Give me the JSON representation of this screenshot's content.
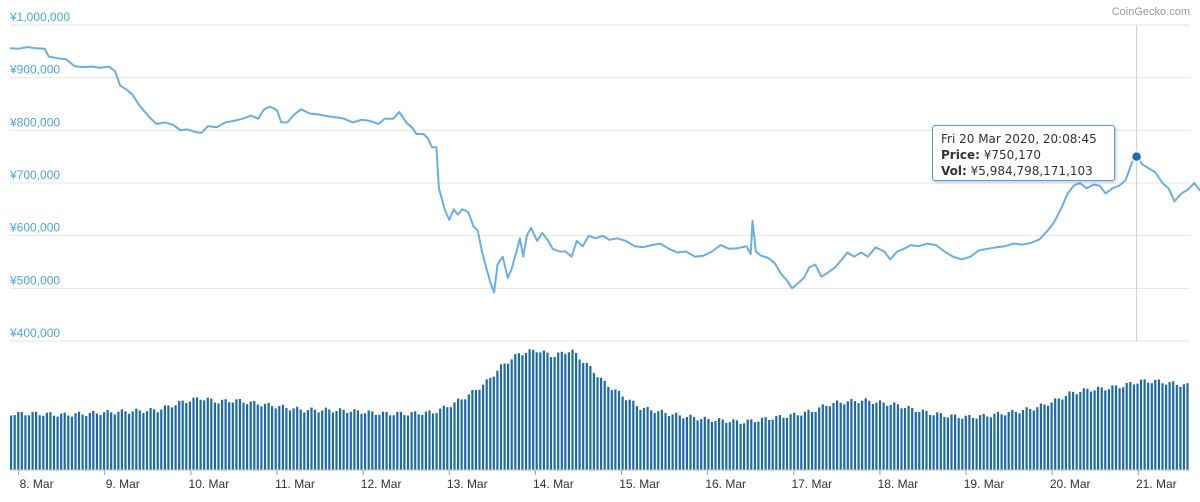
{
  "credit": "CoinGecko.com",
  "tooltip": {
    "date": "Fri 20 Mar 2020, 20:08:45",
    "price_label": "Price:",
    "price_value": "¥750,170",
    "vol_label": "Vol:",
    "vol_value": "¥5,984,798,171,103"
  },
  "colors": {
    "line": "#6aaee6",
    "bars": "#1c6aa6",
    "axis_text_y": "#4aa8de",
    "grid": "#e6e6e6",
    "crosshair": "#cccccc",
    "marker": "#1f6fb2"
  },
  "chart_data": {
    "type": "line",
    "y_ticks": [
      "¥1,000,000",
      "¥900,000",
      "¥800,000",
      "¥700,000",
      "¥600,000",
      "¥500,000",
      "¥400,000"
    ],
    "y_tick_values": [
      1000000,
      900000,
      800000,
      700000,
      600000,
      500000,
      400000
    ],
    "ylim": [
      400000,
      1000000
    ],
    "x_ticks": [
      "8. Mar",
      "9. Mar",
      "10. Mar",
      "11. Mar",
      "12. Mar",
      "13. Mar",
      "14. Mar",
      "15. Mar",
      "16. Mar",
      "17. Mar",
      "18. Mar",
      "19. Mar",
      "20. Mar",
      "21. Mar"
    ],
    "xlim_days": [
      7.9,
      21.6
    ],
    "price_series": {
      "name": "Price",
      "points": [
        [
          7.9,
          956000
        ],
        [
          8.0,
          955000
        ],
        [
          8.1,
          958000
        ],
        [
          8.2,
          956000
        ],
        [
          8.3,
          955000
        ],
        [
          8.35,
          940000
        ],
        [
          8.45,
          937000
        ],
        [
          8.55,
          935000
        ],
        [
          8.65,
          922000
        ],
        [
          8.75,
          920000
        ],
        [
          8.85,
          921000
        ],
        [
          8.95,
          919000
        ],
        [
          9.05,
          921000
        ],
        [
          9.12,
          912000
        ],
        [
          9.18,
          885000
        ],
        [
          9.25,
          878000
        ],
        [
          9.32,
          868000
        ],
        [
          9.4,
          848000
        ],
        [
          9.45,
          838000
        ],
        [
          9.52,
          825000
        ],
        [
          9.6,
          812000
        ],
        [
          9.7,
          815000
        ],
        [
          9.8,
          810000
        ],
        [
          9.88,
          800000
        ],
        [
          9.95,
          802000
        ],
        [
          10.05,
          797000
        ],
        [
          10.12,
          795000
        ],
        [
          10.2,
          808000
        ],
        [
          10.3,
          806000
        ],
        [
          10.4,
          815000
        ],
        [
          10.5,
          818000
        ],
        [
          10.6,
          822000
        ],
        [
          10.7,
          828000
        ],
        [
          10.78,
          822000
        ],
        [
          10.85,
          840000
        ],
        [
          10.92,
          845000
        ],
        [
          11.0,
          838000
        ],
        [
          11.05,
          815000
        ],
        [
          11.12,
          815000
        ],
        [
          11.2,
          830000
        ],
        [
          11.28,
          840000
        ],
        [
          11.38,
          832000
        ],
        [
          11.48,
          830000
        ],
        [
          11.58,
          827000
        ],
        [
          11.68,
          825000
        ],
        [
          11.78,
          822000
        ],
        [
          11.88,
          815000
        ],
        [
          11.98,
          820000
        ],
        [
          12.08,
          818000
        ],
        [
          12.18,
          812000
        ],
        [
          12.25,
          822000
        ],
        [
          12.35,
          822000
        ],
        [
          12.42,
          835000
        ],
        [
          12.5,
          815000
        ],
        [
          12.57,
          805000
        ],
        [
          12.62,
          793000
        ],
        [
          12.7,
          793000
        ],
        [
          12.75,
          785000
        ],
        [
          12.8,
          768000
        ],
        [
          12.85,
          768000
        ],
        [
          12.88,
          690000
        ],
        [
          12.95,
          648000
        ],
        [
          13.0,
          630000
        ],
        [
          13.05,
          650000
        ],
        [
          13.1,
          640000
        ],
        [
          13.15,
          650000
        ],
        [
          13.22,
          645000
        ],
        [
          13.28,
          618000
        ],
        [
          13.33,
          610000
        ],
        [
          13.38,
          570000
        ],
        [
          13.42,
          545000
        ],
        [
          13.48,
          510000
        ],
        [
          13.52,
          492000
        ],
        [
          13.56,
          545000
        ],
        [
          13.62,
          560000
        ],
        [
          13.68,
          520000
        ],
        [
          13.72,
          535000
        ],
        [
          13.78,
          570000
        ],
        [
          13.82,
          595000
        ],
        [
          13.86,
          560000
        ],
        [
          13.9,
          600000
        ],
        [
          13.95,
          615000
        ],
        [
          14.02,
          590000
        ],
        [
          14.08,
          605000
        ],
        [
          14.15,
          590000
        ],
        [
          14.2,
          575000
        ],
        [
          14.28,
          570000
        ],
        [
          14.35,
          570000
        ],
        [
          14.42,
          560000
        ],
        [
          14.48,
          590000
        ],
        [
          14.55,
          580000
        ],
        [
          14.62,
          600000
        ],
        [
          14.7,
          595000
        ],
        [
          14.78,
          600000
        ],
        [
          14.86,
          592000
        ],
        [
          14.95,
          595000
        ],
        [
          15.05,
          590000
        ],
        [
          15.15,
          580000
        ],
        [
          15.25,
          578000
        ],
        [
          15.35,
          582000
        ],
        [
          15.45,
          585000
        ],
        [
          15.55,
          575000
        ],
        [
          15.65,
          568000
        ],
        [
          15.75,
          570000
        ],
        [
          15.85,
          560000
        ],
        [
          15.95,
          562000
        ],
        [
          16.05,
          570000
        ],
        [
          16.15,
          582000
        ],
        [
          16.25,
          575000
        ],
        [
          16.35,
          576000
        ],
        [
          16.45,
          580000
        ],
        [
          16.5,
          565000
        ],
        [
          16.52,
          628000
        ],
        [
          16.56,
          570000
        ],
        [
          16.62,
          562000
        ],
        [
          16.7,
          558000
        ],
        [
          16.78,
          548000
        ],
        [
          16.85,
          528000
        ],
        [
          16.92,
          515000
        ],
        [
          16.98,
          500000
        ],
        [
          17.05,
          510000
        ],
        [
          17.12,
          520000
        ],
        [
          17.18,
          540000
        ],
        [
          17.25,
          545000
        ],
        [
          17.32,
          522000
        ],
        [
          17.4,
          530000
        ],
        [
          17.48,
          540000
        ],
        [
          17.56,
          555000
        ],
        [
          17.62,
          568000
        ],
        [
          17.7,
          560000
        ],
        [
          17.78,
          568000
        ],
        [
          17.86,
          560000
        ],
        [
          17.95,
          578000
        ],
        [
          18.05,
          570000
        ],
        [
          18.12,
          555000
        ],
        [
          18.2,
          570000
        ],
        [
          18.28,
          575000
        ],
        [
          18.36,
          582000
        ],
        [
          18.45,
          580000
        ],
        [
          18.55,
          585000
        ],
        [
          18.65,
          582000
        ],
        [
          18.75,
          570000
        ],
        [
          18.85,
          560000
        ],
        [
          18.95,
          555000
        ],
        [
          19.05,
          560000
        ],
        [
          19.15,
          572000
        ],
        [
          19.25,
          575000
        ],
        [
          19.35,
          578000
        ],
        [
          19.45,
          580000
        ],
        [
          19.55,
          585000
        ],
        [
          19.65,
          583000
        ],
        [
          19.75,
          586000
        ],
        [
          19.85,
          593000
        ],
        [
          19.95,
          610000
        ],
        [
          20.02,
          625000
        ],
        [
          20.1,
          650000
        ],
        [
          20.18,
          680000
        ],
        [
          20.25,
          695000
        ],
        [
          20.32,
          700000
        ],
        [
          20.4,
          690000
        ],
        [
          20.48,
          697000
        ],
        [
          20.55,
          695000
        ],
        [
          20.62,
          680000
        ],
        [
          20.7,
          690000
        ],
        [
          20.78,
          695000
        ],
        [
          20.85,
          705000
        ],
        [
          20.93,
          740000
        ],
        [
          20.98,
          750170
        ],
        [
          21.05,
          735000
        ],
        [
          21.12,
          728000
        ],
        [
          21.2,
          720000
        ],
        [
          21.28,
          700000
        ],
        [
          21.35,
          690000
        ],
        [
          21.42,
          665000
        ],
        [
          21.5,
          680000
        ],
        [
          21.58,
          688000
        ],
        [
          21.65,
          700000
        ],
        [
          21.72,
          685000
        ]
      ]
    },
    "volume_series": {
      "name": "Vol",
      "points": [
        [
          7.9,
          0.45
        ],
        [
          8.2,
          0.45
        ],
        [
          8.5,
          0.44
        ],
        [
          8.8,
          0.45
        ],
        [
          9.0,
          0.46
        ],
        [
          9.3,
          0.47
        ],
        [
          9.6,
          0.48
        ],
        [
          9.9,
          0.55
        ],
        [
          10.1,
          0.58
        ],
        [
          10.3,
          0.55
        ],
        [
          10.5,
          0.56
        ],
        [
          10.8,
          0.53
        ],
        [
          11.0,
          0.51
        ],
        [
          11.3,
          0.48
        ],
        [
          11.6,
          0.48
        ],
        [
          11.9,
          0.47
        ],
        [
          12.2,
          0.45
        ],
        [
          12.5,
          0.45
        ],
        [
          12.8,
          0.46
        ],
        [
          13.0,
          0.52
        ],
        [
          13.2,
          0.6
        ],
        [
          13.4,
          0.7
        ],
        [
          13.6,
          0.85
        ],
        [
          13.8,
          0.95
        ],
        [
          14.0,
          0.98
        ],
        [
          14.2,
          0.93
        ],
        [
          14.4,
          0.98
        ],
        [
          14.6,
          0.85
        ],
        [
          14.8,
          0.7
        ],
        [
          15.0,
          0.6
        ],
        [
          15.2,
          0.5
        ],
        [
          15.4,
          0.47
        ],
        [
          15.6,
          0.44
        ],
        [
          15.8,
          0.42
        ],
        [
          16.0,
          0.4
        ],
        [
          16.2,
          0.39
        ],
        [
          16.4,
          0.38
        ],
        [
          16.6,
          0.4
        ],
        [
          16.8,
          0.42
        ],
        [
          17.0,
          0.44
        ],
        [
          17.2,
          0.47
        ],
        [
          17.4,
          0.53
        ],
        [
          17.6,
          0.55
        ],
        [
          17.8,
          0.56
        ],
        [
          18.0,
          0.54
        ],
        [
          18.2,
          0.52
        ],
        [
          18.4,
          0.48
        ],
        [
          18.6,
          0.45
        ],
        [
          18.8,
          0.43
        ],
        [
          19.0,
          0.42
        ],
        [
          19.2,
          0.43
        ],
        [
          19.4,
          0.45
        ],
        [
          19.6,
          0.47
        ],
        [
          19.8,
          0.5
        ],
        [
          20.0,
          0.55
        ],
        [
          20.2,
          0.62
        ],
        [
          20.4,
          0.65
        ],
        [
          20.6,
          0.66
        ],
        [
          20.8,
          0.68
        ],
        [
          21.0,
          0.72
        ],
        [
          21.2,
          0.72
        ],
        [
          21.4,
          0.7
        ],
        [
          21.6,
          0.68
        ],
        [
          21.72,
          0.7
        ]
      ]
    },
    "highlight_point": {
      "x": 20.98,
      "y": 750170
    }
  }
}
